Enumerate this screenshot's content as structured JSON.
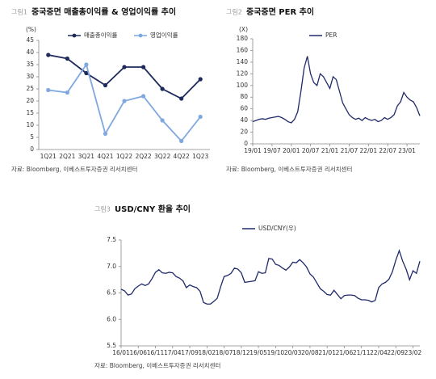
{
  "chart_data": [
    {
      "type": "line",
      "figure_label": "그림1",
      "title": "중국중면 매출총이익률 & 영업이익률 추이",
      "ylabel": "(%)",
      "categories": [
        "1Q21",
        "2Q21",
        "3Q21",
        "4Q21",
        "1Q22",
        "2Q22",
        "3Q22",
        "4Q22",
        "1Q23"
      ],
      "series": [
        {
          "name": "매출총이익률",
          "color": "#1f2a5c",
          "values": [
            39,
            37.5,
            31.5,
            26.5,
            34,
            34,
            25,
            21,
            29
          ]
        },
        {
          "name": "영업이익률",
          "color": "#7fa7e0",
          "values": [
            24.5,
            23.5,
            35,
            6.5,
            20,
            22,
            12,
            3.5,
            13.5
          ]
        }
      ],
      "markers": true,
      "ylim": [
        0,
        45
      ],
      "yticks": [
        0,
        5,
        10,
        15,
        20,
        25,
        30,
        35,
        40,
        45
      ],
      "grid": false,
      "source": "자료: Bloomberg, 이베스트투자증권 리서치센터"
    },
    {
      "type": "line",
      "figure_label": "그림2",
      "title": "중국중면 PER 추이",
      "ylabel": "(X)",
      "categories": [
        "19/01",
        null,
        null,
        null,
        null,
        null,
        "19/07",
        null,
        null,
        null,
        null,
        null,
        "20/01",
        null,
        null,
        null,
        null,
        null,
        "20/07",
        null,
        null,
        null,
        null,
        null,
        "21/01",
        null,
        null,
        null,
        null,
        null,
        "21/07",
        null,
        null,
        null,
        null,
        null,
        "22/01",
        null,
        null,
        null,
        null,
        null,
        "22/07",
        null,
        null,
        null,
        null,
        null,
        "23/01",
        null,
        null,
        null,
        null
      ],
      "series": [
        {
          "name": "PER",
          "color": "#1f2a6b",
          "values": [
            38,
            40,
            42,
            43,
            42,
            44,
            45,
            46,
            47,
            45,
            42,
            38,
            36,
            42,
            55,
            90,
            130,
            150,
            120,
            105,
            100,
            120,
            115,
            105,
            95,
            115,
            110,
            90,
            70,
            60,
            50,
            45,
            42,
            44,
            40,
            45,
            42,
            40,
            42,
            38,
            40,
            45,
            42,
            45,
            50,
            65,
            72,
            88,
            80,
            75,
            72,
            62,
            48
          ]
        }
      ],
      "markers": false,
      "ylim": [
        0,
        180
      ],
      "yticks": [
        0,
        20,
        40,
        60,
        80,
        100,
        120,
        140,
        160,
        180
      ],
      "grid": false,
      "source": "자료: Bloomberg, 이베스트투자증권 리서치센터"
    },
    {
      "type": "line",
      "figure_label": "그림3",
      "title": "USD/CNY 환율 추이",
      "categories": [
        "16/01",
        null,
        null,
        null,
        null,
        "16/06",
        null,
        null,
        null,
        null,
        "16/11",
        null,
        null,
        null,
        null,
        "17/04",
        null,
        null,
        null,
        null,
        "17/09",
        null,
        null,
        null,
        null,
        "18/02",
        null,
        null,
        null,
        null,
        "18/07",
        null,
        null,
        null,
        null,
        "18/12",
        null,
        null,
        null,
        null,
        "19/05",
        null,
        null,
        null,
        null,
        "19/10",
        null,
        null,
        null,
        null,
        "20/03",
        null,
        null,
        null,
        null,
        "20/08",
        null,
        null,
        null,
        null,
        "21/01",
        null,
        null,
        null,
        null,
        "21/06",
        null,
        null,
        null,
        null,
        "21/11",
        null,
        null,
        null,
        null,
        "22/04",
        null,
        null,
        null,
        null,
        "22/09",
        null,
        null,
        null,
        null,
        "23/02",
        null,
        null
      ],
      "series": [
        {
          "name": "USD/CNY(우)",
          "color": "#1f2a6b",
          "values": [
            6.57,
            6.54,
            6.46,
            6.48,
            6.58,
            6.63,
            6.67,
            6.64,
            6.67,
            6.77,
            6.89,
            6.94,
            6.88,
            6.87,
            6.89,
            6.88,
            6.81,
            6.78,
            6.73,
            6.6,
            6.65,
            6.62,
            6.6,
            6.53,
            6.32,
            6.29,
            6.29,
            6.34,
            6.4,
            6.62,
            6.81,
            6.83,
            6.87,
            6.97,
            6.95,
            6.88,
            6.7,
            6.71,
            6.72,
            6.73,
            6.9,
            6.87,
            6.88,
            7.15,
            7.14,
            7.04,
            7.02,
            6.97,
            6.93,
            6.99,
            7.08,
            7.07,
            7.13,
            7.07,
            6.99,
            6.86,
            6.8,
            6.69,
            6.58,
            6.53,
            6.47,
            6.46,
            6.55,
            6.47,
            6.39,
            6.45,
            6.46,
            6.46,
            6.45,
            6.4,
            6.37,
            6.37,
            6.36,
            6.33,
            6.36,
            6.6,
            6.67,
            6.7,
            6.76,
            6.9,
            7.12,
            7.3,
            7.1,
            6.95,
            6.75,
            6.92,
            6.87,
            7.1
          ]
        }
      ],
      "markers": false,
      "ylim": [
        5.5,
        7.5
      ],
      "yticks": [
        5.5,
        {
          "value": 6,
          "label": "6.0"
        },
        6.5,
        {
          "value": 7,
          "label": "7.0"
        },
        7.5
      ],
      "grid": false,
      "source": "자료: Bloomberg, 이베스트투자증권 리서치센터"
    }
  ]
}
